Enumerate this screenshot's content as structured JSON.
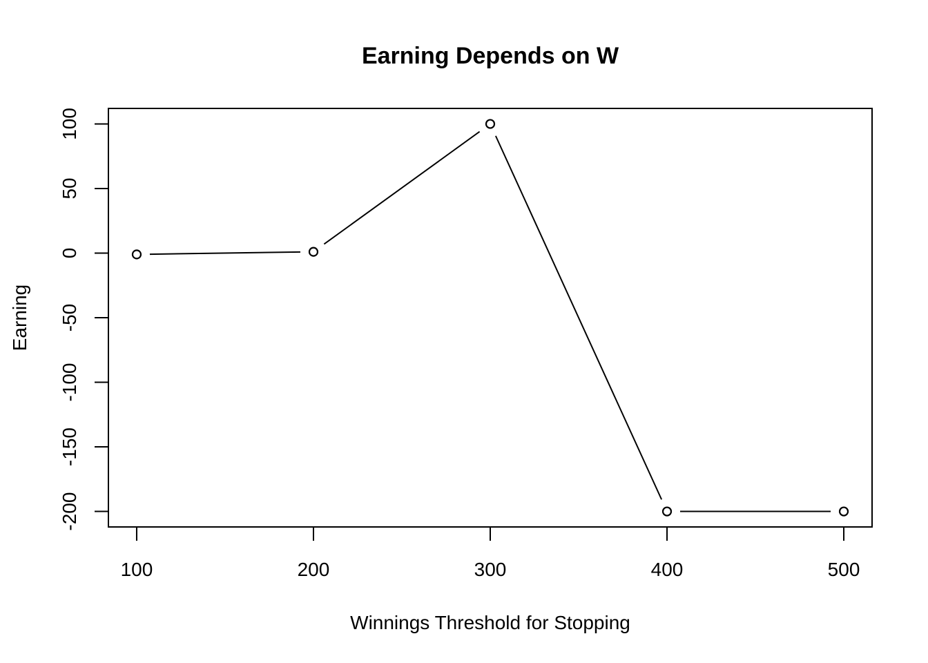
{
  "chart_data": {
    "type": "line",
    "title": "Earning Depends on W",
    "xlabel": "Winnings Threshold for Stopping",
    "ylabel": "Earning",
    "x": [
      100,
      200,
      300,
      400,
      500
    ],
    "series": [
      {
        "values": [
          -1,
          1,
          100,
          -200,
          -200
        ]
      }
    ],
    "xticks": [
      "100",
      "200",
      "300",
      "400",
      "500"
    ],
    "yticks": [
      "-200",
      "-150",
      "-100",
      "-50",
      "0",
      "50",
      "100"
    ],
    "xlim": [
      84,
      516
    ],
    "ylim": [
      -212,
      112
    ],
    "grid": false,
    "marker": "open-circle",
    "line_color": "#000000"
  }
}
